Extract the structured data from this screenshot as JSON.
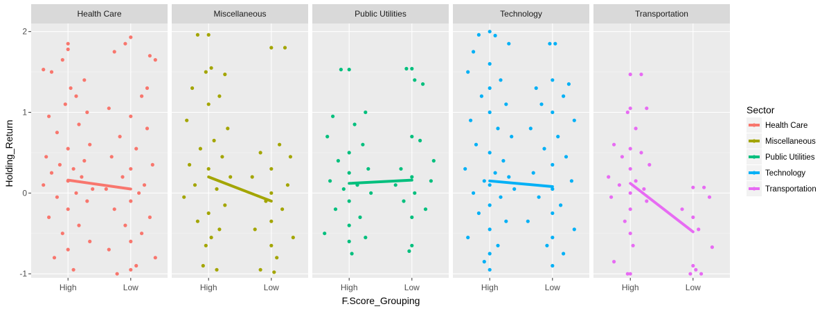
{
  "chart_data": {
    "type": "scatter",
    "title": "",
    "xlabel": "F.Score_Grouping",
    "ylabel": "Holding_Return",
    "categories": [
      "High",
      "Low"
    ],
    "yticks": [
      -1,
      0,
      1,
      2
    ],
    "ylim": [
      -1.05,
      2.1
    ],
    "grid": true,
    "legend": {
      "title": "Sector",
      "position": "right"
    },
    "panels": [
      {
        "name": "Health Care",
        "color": "#F8766D",
        "trend": [
          0.16,
          0.05
        ],
        "high_points": [
          [
            -0.45,
            1.53
          ],
          [
            -0.3,
            1.5
          ],
          [
            0.0,
            1.85
          ],
          [
            0.0,
            1.78
          ],
          [
            -0.1,
            1.65
          ],
          [
            0.15,
            1.2
          ],
          [
            0.35,
            1.0
          ],
          [
            -0.35,
            0.95
          ],
          [
            0.2,
            0.85
          ],
          [
            -0.2,
            0.75
          ],
          [
            0.4,
            0.6
          ],
          [
            0.0,
            0.55
          ],
          [
            -0.4,
            0.45
          ],
          [
            0.3,
            0.4
          ],
          [
            -0.15,
            0.35
          ],
          [
            0.1,
            0.3
          ],
          [
            -0.3,
            0.25
          ],
          [
            0.25,
            0.2
          ],
          [
            0.0,
            0.15
          ],
          [
            -0.45,
            0.1
          ],
          [
            0.45,
            0.05
          ],
          [
            0.15,
            0.0
          ],
          [
            -0.2,
            -0.05
          ],
          [
            0.35,
            -0.1
          ],
          [
            0.0,
            -0.2
          ],
          [
            -0.35,
            -0.3
          ],
          [
            0.2,
            -0.4
          ],
          [
            -0.1,
            -0.5
          ],
          [
            0.4,
            -0.6
          ],
          [
            0.0,
            -0.7
          ],
          [
            -0.25,
            -0.8
          ],
          [
            0.1,
            -0.95
          ],
          [
            0.05,
            1.3
          ],
          [
            -0.05,
            1.1
          ],
          [
            0.3,
            1.4
          ]
        ],
        "low_points": [
          [
            -0.3,
            1.75
          ],
          [
            -0.1,
            1.85
          ],
          [
            0.0,
            1.93
          ],
          [
            0.35,
            1.7
          ],
          [
            0.45,
            1.65
          ],
          [
            0.2,
            1.2
          ],
          [
            -0.4,
            1.05
          ],
          [
            0.0,
            0.95
          ],
          [
            0.3,
            0.8
          ],
          [
            -0.2,
            0.7
          ],
          [
            0.1,
            0.55
          ],
          [
            -0.35,
            0.45
          ],
          [
            0.4,
            0.35
          ],
          [
            0.0,
            0.3
          ],
          [
            -0.15,
            0.2
          ],
          [
            0.25,
            0.1
          ],
          [
            -0.45,
            0.05
          ],
          [
            0.15,
            0.0
          ],
          [
            0.0,
            -0.1
          ],
          [
            -0.3,
            -0.2
          ],
          [
            0.35,
            -0.3
          ],
          [
            -0.1,
            -0.4
          ],
          [
            0.2,
            -0.5
          ],
          [
            0.0,
            -0.6
          ],
          [
            -0.4,
            -0.7
          ],
          [
            0.45,
            -0.8
          ],
          [
            0.1,
            -0.9
          ],
          [
            -0.25,
            -1.0
          ],
          [
            0.0,
            -0.95
          ],
          [
            0.3,
            1.3
          ]
        ]
      },
      {
        "name": "Miscellaneous",
        "color": "#A3A500",
        "trend": [
          0.2,
          -0.1
        ],
        "high_points": [
          [
            -0.2,
            1.96
          ],
          [
            0.0,
            1.96
          ],
          [
            0.05,
            1.55
          ],
          [
            -0.05,
            1.5
          ],
          [
            0.3,
            1.47
          ],
          [
            -0.3,
            1.3
          ],
          [
            0.2,
            1.2
          ],
          [
            0.0,
            1.1
          ],
          [
            -0.4,
            0.9
          ],
          [
            0.35,
            0.8
          ],
          [
            0.1,
            0.65
          ],
          [
            -0.15,
            0.55
          ],
          [
            0.25,
            0.45
          ],
          [
            -0.35,
            0.35
          ],
          [
            0.0,
            0.3
          ],
          [
            0.4,
            0.2
          ],
          [
            -0.25,
            0.1
          ],
          [
            0.15,
            0.05
          ],
          [
            -0.45,
            -0.05
          ],
          [
            0.3,
            -0.15
          ],
          [
            0.0,
            -0.25
          ],
          [
            -0.2,
            -0.35
          ],
          [
            0.2,
            -0.45
          ],
          [
            0.05,
            -0.55
          ],
          [
            -0.05,
            -0.65
          ],
          [
            -0.1,
            -0.9
          ],
          [
            0.15,
            -0.95
          ]
        ],
        "low_points": [
          [
            0.0,
            1.8
          ],
          [
            0.25,
            1.8
          ],
          [
            0.15,
            0.6
          ],
          [
            -0.2,
            0.5
          ],
          [
            0.35,
            0.45
          ],
          [
            0.0,
            0.3
          ],
          [
            -0.35,
            0.2
          ],
          [
            0.3,
            0.1
          ],
          [
            0.0,
            0.0
          ],
          [
            -0.1,
            -0.1
          ],
          [
            0.2,
            -0.2
          ],
          [
            0.0,
            -0.35
          ],
          [
            -0.3,
            -0.45
          ],
          [
            0.4,
            -0.55
          ],
          [
            0.0,
            -0.65
          ],
          [
            0.1,
            -0.8
          ],
          [
            -0.2,
            -0.95
          ],
          [
            0.05,
            -0.98
          ]
        ]
      },
      {
        "name": "Public Utilities",
        "color": "#00BF7D",
        "trend": [
          0.12,
          0.16
        ],
        "high_points": [
          [
            -0.15,
            1.53
          ],
          [
            0.0,
            1.53
          ],
          [
            0.3,
            1.0
          ],
          [
            -0.3,
            0.95
          ],
          [
            0.1,
            0.85
          ],
          [
            -0.4,
            0.7
          ],
          [
            0.25,
            0.6
          ],
          [
            0.0,
            0.5
          ],
          [
            -0.2,
            0.4
          ],
          [
            0.35,
            0.3
          ],
          [
            0.0,
            0.25
          ],
          [
            -0.35,
            0.15
          ],
          [
            0.15,
            0.1
          ],
          [
            -0.1,
            0.05
          ],
          [
            0.4,
            0.0
          ],
          [
            0.0,
            -0.1
          ],
          [
            -0.25,
            -0.2
          ],
          [
            0.2,
            -0.3
          ],
          [
            0.0,
            -0.4
          ],
          [
            -0.45,
            -0.5
          ],
          [
            0.3,
            -0.55
          ],
          [
            0.0,
            -0.6
          ],
          [
            0.05,
            -0.75
          ]
        ],
        "low_points": [
          [
            -0.1,
            1.54
          ],
          [
            0.0,
            1.54
          ],
          [
            0.05,
            1.4
          ],
          [
            0.2,
            1.35
          ],
          [
            0.0,
            0.7
          ],
          [
            0.15,
            0.65
          ],
          [
            0.4,
            0.4
          ],
          [
            -0.2,
            0.3
          ],
          [
            0.0,
            0.2
          ],
          [
            0.35,
            0.15
          ],
          [
            -0.3,
            0.1
          ],
          [
            0.05,
            0.0
          ],
          [
            -0.15,
            -0.1
          ],
          [
            0.25,
            -0.2
          ],
          [
            0.0,
            -0.3
          ],
          [
            0.0,
            -0.65
          ],
          [
            -0.05,
            -0.72
          ]
        ]
      },
      {
        "name": "Technology",
        "color": "#00B0F6",
        "trend": [
          0.15,
          0.08
        ],
        "high_points": [
          [
            -0.2,
            1.96
          ],
          [
            0.0,
            2.0
          ],
          [
            0.1,
            1.95
          ],
          [
            -0.3,
            1.75
          ],
          [
            0.35,
            1.85
          ],
          [
            0.0,
            1.6
          ],
          [
            -0.4,
            1.5
          ],
          [
            0.2,
            1.4
          ],
          [
            0.0,
            1.3
          ],
          [
            -0.15,
            1.2
          ],
          [
            0.3,
            1.1
          ],
          [
            0.0,
            1.0
          ],
          [
            -0.35,
            0.9
          ],
          [
            0.15,
            0.8
          ],
          [
            0.4,
            0.7
          ],
          [
            -0.25,
            0.6
          ],
          [
            0.0,
            0.5
          ],
          [
            0.25,
            0.4
          ],
          [
            -0.45,
            0.3
          ],
          [
            0.1,
            0.25
          ],
          [
            0.35,
            0.2
          ],
          [
            -0.1,
            0.15
          ],
          [
            0.0,
            0.1
          ],
          [
            0.45,
            0.05
          ],
          [
            -0.3,
            0.0
          ],
          [
            0.2,
            -0.05
          ],
          [
            0.0,
            -0.15
          ],
          [
            -0.2,
            -0.25
          ],
          [
            0.3,
            -0.35
          ],
          [
            0.0,
            -0.45
          ],
          [
            -0.4,
            -0.55
          ],
          [
            0.15,
            -0.65
          ],
          [
            0.0,
            -0.75
          ],
          [
            -0.1,
            -0.85
          ],
          [
            0.0,
            -0.95
          ]
        ],
        "low_points": [
          [
            -0.05,
            1.85
          ],
          [
            0.05,
            1.85
          ],
          [
            0.0,
            1.4
          ],
          [
            0.3,
            1.35
          ],
          [
            -0.3,
            1.3
          ],
          [
            0.2,
            1.2
          ],
          [
            -0.2,
            1.1
          ],
          [
            0.0,
            1.0
          ],
          [
            0.4,
            0.9
          ],
          [
            -0.4,
            0.8
          ],
          [
            0.1,
            0.7
          ],
          [
            -0.15,
            0.55
          ],
          [
            0.25,
            0.45
          ],
          [
            0.0,
            0.35
          ],
          [
            -0.35,
            0.25
          ],
          [
            0.35,
            0.15
          ],
          [
            0.0,
            0.05
          ],
          [
            -0.25,
            -0.05
          ],
          [
            0.15,
            -0.15
          ],
          [
            0.0,
            -0.25
          ],
          [
            -0.45,
            -0.35
          ],
          [
            0.4,
            -0.45
          ],
          [
            0.0,
            -0.55
          ],
          [
            -0.1,
            -0.65
          ],
          [
            0.2,
            -0.75
          ],
          [
            0.0,
            -0.9
          ]
        ]
      },
      {
        "name": "Transportation",
        "color": "#E76BF3",
        "trend": [
          0.12,
          -0.48
        ],
        "high_points": [
          [
            0.0,
            1.47
          ],
          [
            0.2,
            1.47
          ],
          [
            0.0,
            1.05
          ],
          [
            -0.05,
            1.0
          ],
          [
            0.3,
            1.05
          ],
          [
            0.1,
            0.8
          ],
          [
            -0.3,
            0.6
          ],
          [
            0.0,
            0.55
          ],
          [
            0.2,
            0.5
          ],
          [
            -0.15,
            0.45
          ],
          [
            0.35,
            0.35
          ],
          [
            0.0,
            0.3
          ],
          [
            -0.4,
            0.2
          ],
          [
            0.1,
            0.15
          ],
          [
            -0.2,
            0.1
          ],
          [
            0.25,
            0.05
          ],
          [
            0.0,
            0.0
          ],
          [
            -0.35,
            -0.05
          ],
          [
            0.3,
            -0.1
          ],
          [
            0.0,
            -0.2
          ],
          [
            -0.1,
            -0.35
          ],
          [
            0.0,
            -0.5
          ],
          [
            0.05,
            -0.65
          ],
          [
            -0.3,
            -0.85
          ],
          [
            0.0,
            -1.0
          ],
          [
            -0.05,
            -1.0
          ]
        ],
        "low_points": [
          [
            0.0,
            0.07
          ],
          [
            0.2,
            0.07
          ],
          [
            -0.2,
            -0.2
          ],
          [
            0.3,
            -0.05
          ],
          [
            0.0,
            -0.3
          ],
          [
            0.1,
            -0.45
          ],
          [
            0.35,
            -0.67
          ],
          [
            0.0,
            -0.9
          ],
          [
            0.05,
            -0.95
          ],
          [
            0.15,
            -1.0
          ],
          [
            -0.05,
            -1.0
          ]
        ]
      }
    ]
  }
}
